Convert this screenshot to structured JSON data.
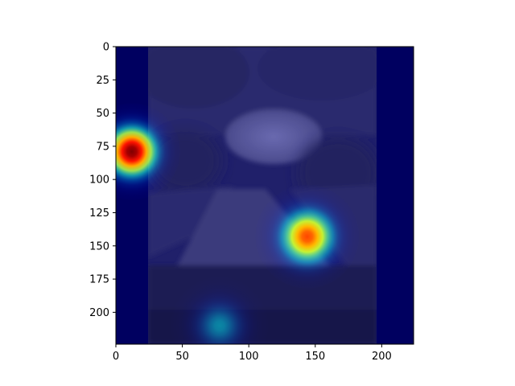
{
  "chart_data": {
    "type": "heatmap",
    "title": "",
    "xlabel": "",
    "ylabel": "",
    "xlim": [
      0,
      224
    ],
    "ylim": [
      224,
      0
    ],
    "x_ticks": [
      0,
      50,
      100,
      150,
      200
    ],
    "y_ticks": [
      0,
      25,
      50,
      75,
      100,
      125,
      150,
      175,
      200
    ],
    "colormap": "jet",
    "background_image": "night street scene with trees, road and car dashboard (grayscale photo under heatmap overlay)",
    "hotspots": [
      {
        "x": 12,
        "y": 79,
        "sigma": 14,
        "intensity": 1.0
      },
      {
        "x": 144,
        "y": 143,
        "sigma": 15,
        "intensity": 0.78
      },
      {
        "x": 78,
        "y": 210,
        "sigma": 14,
        "intensity": 0.28
      }
    ],
    "dark_bands_x": [
      [
        0,
        24
      ],
      [
        195,
        224
      ]
    ],
    "grid": false,
    "legend": "none"
  },
  "colors": {
    "cold": "#000080",
    "warm": "#800000",
    "axes": "#000000",
    "background": "#ffffff"
  }
}
